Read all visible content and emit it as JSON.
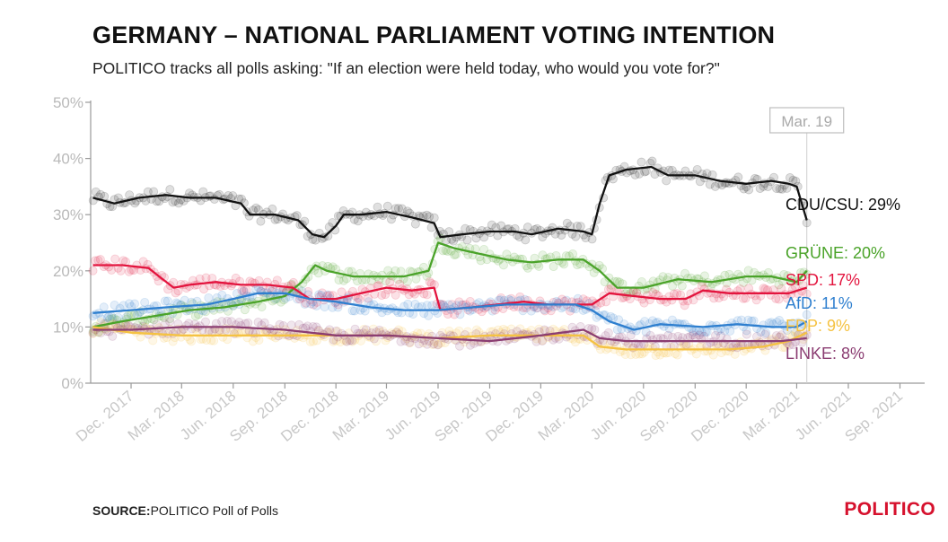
{
  "header": {
    "title": "GERMANY – NATIONAL PARLIAMENT VOTING INTENTION",
    "subtitle": "POLITICO tracks all polls asking: \"If an election were held today, who would you vote for?\""
  },
  "footer": {
    "source_label": "SOURCE:",
    "source_text": "POLITICO Poll of Polls",
    "brand": "POLITICO"
  },
  "chart_data": {
    "type": "scatter",
    "ylim": [
      0,
      50
    ],
    "y_ticks": [
      0,
      10,
      20,
      30,
      40,
      50
    ],
    "y_tick_labels": [
      "0%",
      "10%",
      "20%",
      "30%",
      "40%",
      "50%"
    ],
    "xlim": [
      "2017-09-20",
      "2021-10-15"
    ],
    "x_tick_dates": [
      "2017-12-01",
      "2018-03-01",
      "2018-06-01",
      "2018-09-01",
      "2018-12-01",
      "2019-03-01",
      "2019-06-01",
      "2019-09-01",
      "2019-12-01",
      "2020-03-01",
      "2020-06-01",
      "2020-09-01",
      "2020-12-01",
      "2021-03-01",
      "2021-06-01",
      "2021-09-01"
    ],
    "x_tick_labels": [
      "Dec. 2017",
      "Mar. 2018",
      "Jun. 2018",
      "Sep. 2018",
      "Dec. 2018",
      "Mar. 2019",
      "Jun. 2019",
      "Sep. 2019",
      "Dec. 2019",
      "Mar. 2020",
      "Jun. 2020",
      "Sep. 2020",
      "Dec. 2020",
      "Mar. 2021",
      "Jun. 2021",
      "Sep. 2021"
    ],
    "marker": {
      "date": "2021-03-19",
      "label": "Mar. 19"
    },
    "grid": false,
    "series": [
      {
        "name": "CDU/CSU",
        "end_label": "CDU/CSU: 29%",
        "color": "#111111",
        "trend": [
          [
            "2017-09-24",
            33
          ],
          [
            "2017-11-01",
            32
          ],
          [
            "2017-12-15",
            33
          ],
          [
            "2018-02-01",
            33.5
          ],
          [
            "2018-03-15",
            33
          ],
          [
            "2018-05-01",
            33
          ],
          [
            "2018-06-15",
            32
          ],
          [
            "2018-07-01",
            30
          ],
          [
            "2018-08-15",
            30
          ],
          [
            "2018-09-25",
            29
          ],
          [
            "2018-10-20",
            26.5
          ],
          [
            "2018-11-10",
            26
          ],
          [
            "2018-12-01",
            28
          ],
          [
            "2018-12-15",
            30
          ],
          [
            "2019-01-15",
            30
          ],
          [
            "2019-03-01",
            30.5
          ],
          [
            "2019-04-15",
            29.5
          ],
          [
            "2019-05-25",
            28.5
          ],
          [
            "2019-06-05",
            26
          ],
          [
            "2019-07-15",
            26.5
          ],
          [
            "2019-09-01",
            27
          ],
          [
            "2019-10-15",
            27
          ],
          [
            "2019-11-15",
            26.5
          ],
          [
            "2020-01-01",
            27.5
          ],
          [
            "2020-02-15",
            27
          ],
          [
            "2020-03-01",
            26.5
          ],
          [
            "2020-03-15",
            32
          ],
          [
            "2020-04-01",
            37
          ],
          [
            "2020-05-01",
            38
          ],
          [
            "2020-06-15",
            38.5
          ],
          [
            "2020-07-15",
            37
          ],
          [
            "2020-09-01",
            37
          ],
          [
            "2020-10-15",
            36
          ],
          [
            "2020-12-01",
            35.5
          ],
          [
            "2021-01-15",
            36
          ],
          [
            "2021-02-15",
            35.5
          ],
          [
            "2021-03-01",
            35
          ],
          [
            "2021-03-10",
            32
          ],
          [
            "2021-03-19",
            29
          ]
        ]
      },
      {
        "name": "GRÜNE",
        "end_label": "GRÜNE: 20%",
        "color": "#4aa329",
        "trend": [
          [
            "2017-09-24",
            10
          ],
          [
            "2017-11-15",
            11
          ],
          [
            "2018-01-15",
            12
          ],
          [
            "2018-03-15",
            13
          ],
          [
            "2018-05-15",
            13.5
          ],
          [
            "2018-07-15",
            14.5
          ],
          [
            "2018-09-01",
            15.5
          ],
          [
            "2018-10-01",
            18
          ],
          [
            "2018-10-25",
            21
          ],
          [
            "2018-11-15",
            20
          ],
          [
            "2019-01-01",
            19
          ],
          [
            "2019-02-15",
            19
          ],
          [
            "2019-04-01",
            19
          ],
          [
            "2019-05-15",
            20
          ],
          [
            "2019-06-01",
            25
          ],
          [
            "2019-07-01",
            24
          ],
          [
            "2019-08-15",
            23
          ],
          [
            "2019-10-01",
            22
          ],
          [
            "2019-11-15",
            21.5
          ],
          [
            "2020-01-01",
            22
          ],
          [
            "2020-02-15",
            22
          ],
          [
            "2020-03-15",
            20
          ],
          [
            "2020-04-15",
            17
          ],
          [
            "2020-06-01",
            17
          ],
          [
            "2020-08-01",
            18.5
          ],
          [
            "2020-10-01",
            18
          ],
          [
            "2020-12-01",
            19
          ],
          [
            "2021-01-15",
            19
          ],
          [
            "2021-03-01",
            18
          ],
          [
            "2021-03-19",
            20
          ]
        ]
      },
      {
        "name": "SPD",
        "end_label": "SPD: 17%",
        "color": "#e3143e",
        "trend": [
          [
            "2017-09-24",
            21
          ],
          [
            "2017-11-15",
            21
          ],
          [
            "2018-01-01",
            20.5
          ],
          [
            "2018-01-20",
            19
          ],
          [
            "2018-02-15",
            17
          ],
          [
            "2018-03-15",
            17.5
          ],
          [
            "2018-05-01",
            18
          ],
          [
            "2018-06-15",
            17.5
          ],
          [
            "2018-08-01",
            17.5
          ],
          [
            "2018-09-15",
            17
          ],
          [
            "2018-10-15",
            15
          ],
          [
            "2018-12-01",
            15
          ],
          [
            "2019-01-15",
            16
          ],
          [
            "2019-03-01",
            17
          ],
          [
            "2019-04-15",
            16.5
          ],
          [
            "2019-05-25",
            17
          ],
          [
            "2019-06-05",
            13
          ],
          [
            "2019-08-01",
            13.5
          ],
          [
            "2019-09-15",
            14
          ],
          [
            "2019-11-01",
            14.5
          ],
          [
            "2019-12-15",
            14
          ],
          [
            "2020-02-01",
            14
          ],
          [
            "2020-03-01",
            14
          ],
          [
            "2020-04-01",
            16
          ],
          [
            "2020-05-15",
            15.5
          ],
          [
            "2020-07-01",
            15
          ],
          [
            "2020-08-15",
            15
          ],
          [
            "2020-09-15",
            16.5
          ],
          [
            "2020-11-01",
            16
          ],
          [
            "2021-01-01",
            16
          ],
          [
            "2021-02-15",
            16
          ],
          [
            "2021-03-19",
            17
          ]
        ]
      },
      {
        "name": "AfD",
        "end_label": "AfD: 11%",
        "color": "#2e7fcf",
        "trend": [
          [
            "2017-09-24",
            12.5
          ],
          [
            "2017-12-01",
            13
          ],
          [
            "2018-02-01",
            13.5
          ],
          [
            "2018-04-15",
            14
          ],
          [
            "2018-06-01",
            15
          ],
          [
            "2018-07-15",
            16
          ],
          [
            "2018-09-01",
            16
          ],
          [
            "2018-10-15",
            15
          ],
          [
            "2018-12-01",
            14.5
          ],
          [
            "2019-02-01",
            13.5
          ],
          [
            "2019-04-01",
            13
          ],
          [
            "2019-06-01",
            13
          ],
          [
            "2019-08-01",
            13.5
          ],
          [
            "2019-10-01",
            14
          ],
          [
            "2019-12-01",
            14
          ],
          [
            "2020-02-01",
            14
          ],
          [
            "2020-03-01",
            13
          ],
          [
            "2020-04-01",
            11
          ],
          [
            "2020-05-15",
            9.5
          ],
          [
            "2020-07-01",
            10.5
          ],
          [
            "2020-09-15",
            10
          ],
          [
            "2020-11-15",
            10.5
          ],
          [
            "2021-01-15",
            10
          ],
          [
            "2021-03-01",
            10
          ],
          [
            "2021-03-19",
            11
          ]
        ]
      },
      {
        "name": "FDP",
        "end_label": "FDP: 9%",
        "color": "#f5c242",
        "trend": [
          [
            "2017-09-24",
            10
          ],
          [
            "2017-12-01",
            9
          ],
          [
            "2018-03-01",
            8.5
          ],
          [
            "2018-06-01",
            8.5
          ],
          [
            "2018-09-01",
            8.5
          ],
          [
            "2018-12-01",
            8.5
          ],
          [
            "2019-03-01",
            8.5
          ],
          [
            "2019-06-01",
            8
          ],
          [
            "2019-09-01",
            8.5
          ],
          [
            "2019-12-01",
            8.5
          ],
          [
            "2020-02-15",
            8.5
          ],
          [
            "2020-03-15",
            6.5
          ],
          [
            "2020-05-01",
            6
          ],
          [
            "2020-07-01",
            6
          ],
          [
            "2020-09-01",
            6
          ],
          [
            "2020-11-01",
            6
          ],
          [
            "2021-01-01",
            6.5
          ],
          [
            "2021-02-15",
            7.5
          ],
          [
            "2021-03-19",
            9
          ]
        ]
      },
      {
        "name": "LINKE",
        "end_label": "LINKE: 8%",
        "color": "#8b3d72",
        "trend": [
          [
            "2017-09-24",
            9.5
          ],
          [
            "2017-12-01",
            9.5
          ],
          [
            "2018-03-01",
            10
          ],
          [
            "2018-06-01",
            10
          ],
          [
            "2018-09-01",
            9.5
          ],
          [
            "2018-12-01",
            8.5
          ],
          [
            "2019-03-01",
            8.5
          ],
          [
            "2019-06-01",
            8
          ],
          [
            "2019-09-01",
            7.5
          ],
          [
            "2019-12-01",
            8.5
          ],
          [
            "2020-02-15",
            9.5
          ],
          [
            "2020-03-15",
            8
          ],
          [
            "2020-05-01",
            7.5
          ],
          [
            "2020-07-01",
            7.5
          ],
          [
            "2020-10-01",
            7.5
          ],
          [
            "2020-12-01",
            7.5
          ],
          [
            "2021-02-01",
            7.5
          ],
          [
            "2021-03-19",
            8
          ]
        ]
      }
    ]
  },
  "colors": {
    "axis": "#999999",
    "tick_text": "#c0c0c0",
    "brand": "#d6112d"
  }
}
